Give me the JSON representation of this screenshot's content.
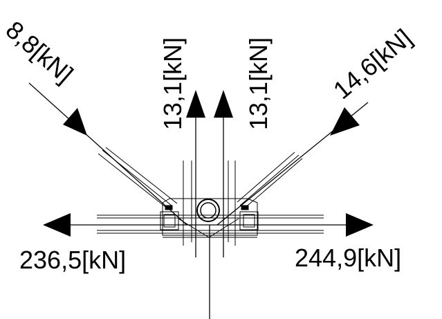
{
  "diagram": {
    "colors": {
      "line": "#000000",
      "background": "#ffffff"
    },
    "forces": {
      "top_left_diagonal": "8,8[kN]",
      "vertical_left": "13,1[kN]",
      "vertical_right": "13,1[kN]",
      "top_right_diagonal": "14,6[kN]",
      "horizontal_left": "236,5[kN]",
      "horizontal_right": "244,9[kN]"
    }
  }
}
